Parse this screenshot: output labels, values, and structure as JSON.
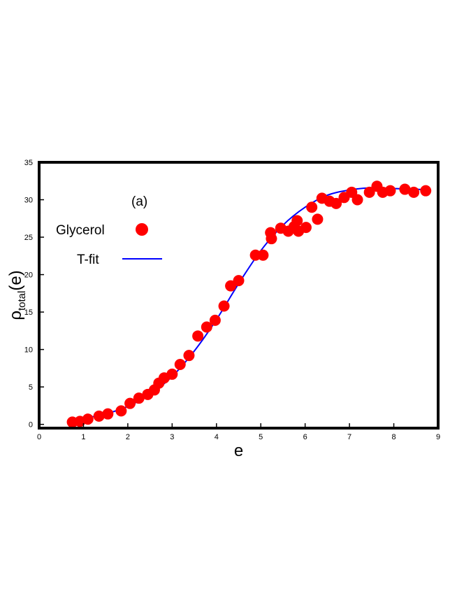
{
  "chart_data": {
    "type": "scatter",
    "panel_label": "(a)",
    "xlabel": "e",
    "ylabel": {
      "main": "ρ",
      "sub": "total",
      "tail": "(e)"
    },
    "xlim": [
      0,
      9
    ],
    "ylim": [
      -0.5,
      35
    ],
    "x_ticks": [
      0,
      1,
      2,
      3,
      4,
      5,
      6,
      7,
      8,
      9
    ],
    "y_ticks": [
      0,
      5,
      10,
      15,
      20,
      25,
      30,
      35
    ],
    "grid": false,
    "legend_position": "upper-left",
    "series": [
      {
        "name": "Glycerol",
        "kind": "scatter",
        "color": "#ff0000",
        "points": [
          [
            0.75,
            0.3
          ],
          [
            0.92,
            0.4
          ],
          [
            1.1,
            0.7
          ],
          [
            1.35,
            1.1
          ],
          [
            1.55,
            1.4
          ],
          [
            1.85,
            1.8
          ],
          [
            2.05,
            2.8
          ],
          [
            2.25,
            3.5
          ],
          [
            2.45,
            4.0
          ],
          [
            2.6,
            4.6
          ],
          [
            2.7,
            5.5
          ],
          [
            2.82,
            6.2
          ],
          [
            3.0,
            6.7
          ],
          [
            3.18,
            8.0
          ],
          [
            3.38,
            9.2
          ],
          [
            3.58,
            11.8
          ],
          [
            3.78,
            13.0
          ],
          [
            3.97,
            13.9
          ],
          [
            4.17,
            15.8
          ],
          [
            4.32,
            18.5
          ],
          [
            4.5,
            19.2
          ],
          [
            4.88,
            22.6
          ],
          [
            5.05,
            22.6
          ],
          [
            5.22,
            25.6
          ],
          [
            5.24,
            24.8
          ],
          [
            5.45,
            26.2
          ],
          [
            5.62,
            25.8
          ],
          [
            5.75,
            26.4
          ],
          [
            5.82,
            27.2
          ],
          [
            5.85,
            25.8
          ],
          [
            6.02,
            26.3
          ],
          [
            6.15,
            29.0
          ],
          [
            6.28,
            27.4
          ],
          [
            6.38,
            30.2
          ],
          [
            6.55,
            29.8
          ],
          [
            6.7,
            29.5
          ],
          [
            6.88,
            30.3
          ],
          [
            7.05,
            31.0
          ],
          [
            7.18,
            30.0
          ],
          [
            7.45,
            31.0
          ],
          [
            7.62,
            31.8
          ],
          [
            7.75,
            31.0
          ],
          [
            7.92,
            31.2
          ],
          [
            8.25,
            31.4
          ],
          [
            8.45,
            31.0
          ],
          [
            8.72,
            31.2
          ]
        ]
      },
      {
        "name": "T-fit",
        "kind": "line",
        "color": "#0000ff",
        "points": [
          [
            0.75,
            0.5
          ],
          [
            1.0,
            0.8
          ],
          [
            1.5,
            1.4
          ],
          [
            2.0,
            2.4
          ],
          [
            2.5,
            4.0
          ],
          [
            3.0,
            6.4
          ],
          [
            3.5,
            9.8
          ],
          [
            4.0,
            14.0
          ],
          [
            4.5,
            18.8
          ],
          [
            5.0,
            23.2
          ],
          [
            5.5,
            26.6
          ],
          [
            6.0,
            29.0
          ],
          [
            6.5,
            30.6
          ],
          [
            7.0,
            31.3
          ],
          [
            7.5,
            31.6
          ],
          [
            8.0,
            31.5
          ],
          [
            8.5,
            31.4
          ],
          [
            8.75,
            31.3
          ]
        ]
      }
    ]
  }
}
